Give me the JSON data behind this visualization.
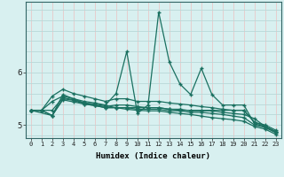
{
  "xlabel": "Humidex (Indice chaleur)",
  "xlim": [
    -0.5,
    23.5
  ],
  "ylim": [
    4.75,
    7.35
  ],
  "yticks": [
    5,
    6
  ],
  "xticks": [
    0,
    1,
    2,
    3,
    4,
    5,
    6,
    7,
    8,
    9,
    10,
    11,
    12,
    13,
    14,
    15,
    16,
    17,
    18,
    19,
    20,
    21,
    22,
    23
  ],
  "background_color": "#d8f0f0",
  "vgrid_color": "#e8c8c8",
  "hgrid_color": "#b8d8d8",
  "line_color": "#1a7060",
  "series": [
    {
      "x": [
        0,
        1,
        2,
        3,
        4,
        5,
        6,
        7,
        8,
        9,
        10,
        11,
        12,
        13,
        14,
        15,
        16,
        17,
        18,
        19,
        20,
        21,
        22,
        23
      ],
      "y": [
        5.28,
        5.28,
        5.45,
        5.55,
        5.5,
        5.45,
        5.42,
        5.38,
        5.6,
        6.4,
        5.22,
        5.38,
        7.15,
        6.2,
        5.78,
        5.58,
        6.08,
        5.58,
        5.38,
        5.38,
        5.38,
        5.02,
        4.97,
        4.87
      ]
    },
    {
      "x": [
        0,
        1,
        2,
        3,
        4,
        5,
        6,
        7,
        8,
        9,
        10,
        11,
        12,
        13,
        14,
        15,
        16,
        17,
        18,
        19,
        20,
        21,
        22,
        23
      ],
      "y": [
        5.28,
        5.28,
        5.28,
        5.52,
        5.48,
        5.42,
        5.38,
        5.35,
        5.38,
        5.38,
        5.35,
        5.33,
        5.33,
        5.3,
        5.28,
        5.28,
        5.28,
        5.28,
        5.28,
        5.28,
        5.28,
        5.05,
        4.97,
        4.87
      ]
    },
    {
      "x": [
        0,
        1,
        2,
        3,
        4,
        5,
        6,
        7,
        8,
        9,
        10,
        11,
        12,
        13,
        14,
        15,
        16,
        17,
        18,
        19,
        20,
        21,
        22,
        23
      ],
      "y": [
        5.28,
        5.28,
        5.18,
        5.48,
        5.44,
        5.4,
        5.37,
        5.33,
        5.33,
        5.33,
        5.3,
        5.3,
        5.3,
        5.27,
        5.27,
        5.24,
        5.24,
        5.22,
        5.2,
        5.17,
        5.14,
        5.0,
        4.95,
        4.85
      ]
    },
    {
      "x": [
        0,
        2,
        3,
        4,
        5,
        6,
        7,
        8,
        9,
        10,
        11,
        12,
        13,
        14,
        15,
        16,
        17,
        18,
        19,
        20,
        21,
        22,
        23
      ],
      "y": [
        5.28,
        5.18,
        5.58,
        5.5,
        5.42,
        5.4,
        5.37,
        5.33,
        5.33,
        5.33,
        5.33,
        5.33,
        5.3,
        5.3,
        5.27,
        5.27,
        5.27,
        5.24,
        5.22,
        5.2,
        5.12,
        4.97,
        4.87
      ]
    },
    {
      "x": [
        0,
        1,
        2,
        3,
        4,
        5,
        6,
        7,
        8,
        9,
        10,
        11,
        12,
        13,
        14,
        15,
        16,
        17,
        18,
        19,
        20,
        21,
        22,
        23
      ],
      "y": [
        5.28,
        5.28,
        5.18,
        5.5,
        5.47,
        5.4,
        5.37,
        5.33,
        5.33,
        5.3,
        5.28,
        5.27,
        5.27,
        5.24,
        5.22,
        5.2,
        5.17,
        5.14,
        5.12,
        5.1,
        5.07,
        4.97,
        4.92,
        4.82
      ]
    },
    {
      "x": [
        0,
        1,
        2,
        3,
        4,
        5,
        6,
        7,
        8,
        9,
        10,
        11,
        12,
        13,
        14,
        15,
        16,
        17,
        18,
        19,
        20,
        21,
        22,
        23
      ],
      "y": [
        5.28,
        5.28,
        5.55,
        5.68,
        5.6,
        5.55,
        5.5,
        5.45,
        5.5,
        5.5,
        5.45,
        5.45,
        5.45,
        5.42,
        5.4,
        5.38,
        5.35,
        5.33,
        5.3,
        5.28,
        5.28,
        5.05,
        5.0,
        4.9
      ]
    }
  ]
}
